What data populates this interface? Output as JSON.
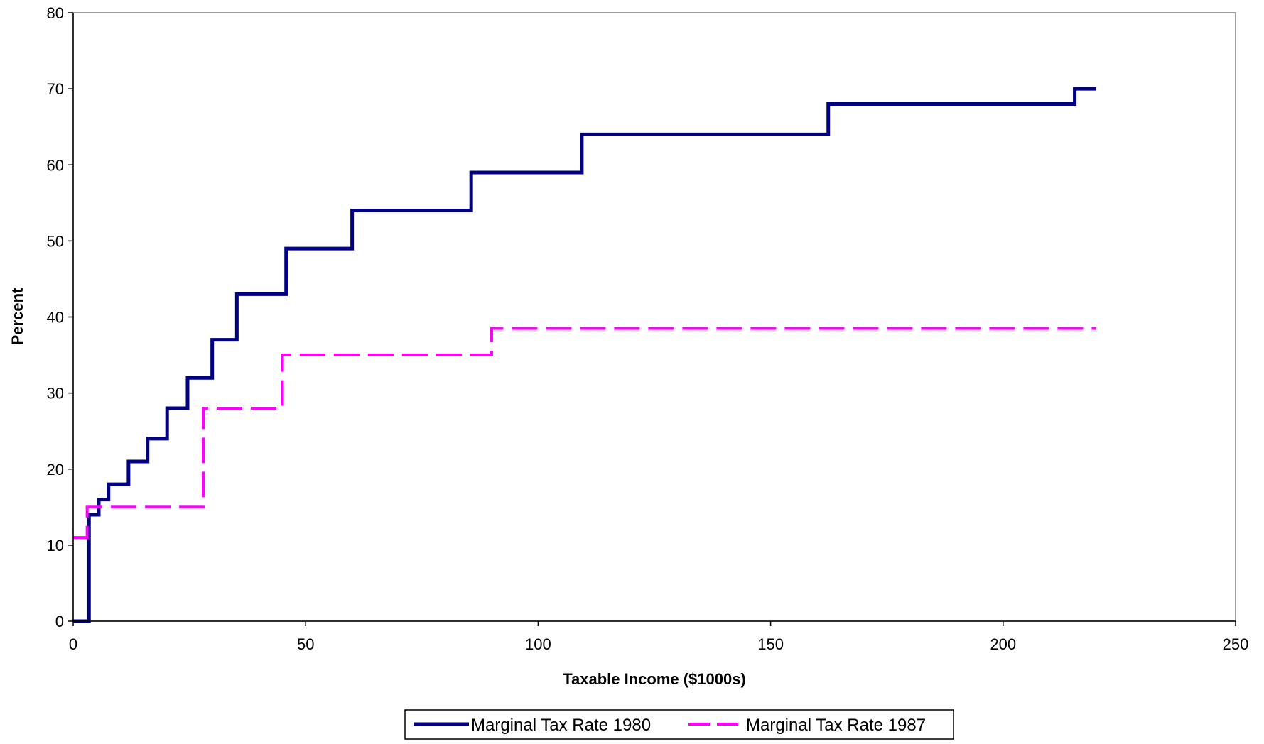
{
  "chart_data": {
    "type": "line",
    "xlabel": "Taxable Income ($1000s)",
    "ylabel": "Percent",
    "xlim": [
      0,
      250
    ],
    "ylim": [
      0,
      80
    ],
    "x_ticks": [
      "0",
      "50",
      "100",
      "150",
      "200",
      "250"
    ],
    "y_ticks": [
      "0",
      "10",
      "20",
      "30",
      "40",
      "50",
      "60",
      "70",
      "80"
    ],
    "grid": false,
    "legend_position": "bottom",
    "step": true,
    "series": [
      {
        "name": "Marginal Tax Rate 1980",
        "color": "#000080",
        "style": "solid",
        "points": [
          [
            0,
            0
          ],
          [
            3.4,
            0
          ],
          [
            3.4,
            14
          ],
          [
            5.5,
            14
          ],
          [
            5.5,
            16
          ],
          [
            7.6,
            16
          ],
          [
            7.6,
            18
          ],
          [
            11.9,
            18
          ],
          [
            11.9,
            21
          ],
          [
            16,
            21
          ],
          [
            16,
            24
          ],
          [
            20.2,
            24
          ],
          [
            20.2,
            28
          ],
          [
            24.6,
            28
          ],
          [
            24.6,
            32
          ],
          [
            29.9,
            32
          ],
          [
            29.9,
            37
          ],
          [
            35.2,
            37
          ],
          [
            35.2,
            43
          ],
          [
            45.8,
            43
          ],
          [
            45.8,
            49
          ],
          [
            60,
            49
          ],
          [
            60,
            54
          ],
          [
            85.6,
            54
          ],
          [
            85.6,
            59
          ],
          [
            109.4,
            59
          ],
          [
            109.4,
            64
          ],
          [
            162.4,
            64
          ],
          [
            162.4,
            68
          ],
          [
            215.4,
            68
          ],
          [
            215.4,
            70
          ],
          [
            220,
            70
          ]
        ]
      },
      {
        "name": "Marginal Tax Rate 1987",
        "color": "#ff00ff",
        "style": "dashed",
        "points": [
          [
            0,
            11
          ],
          [
            3,
            11
          ],
          [
            3,
            15
          ],
          [
            28,
            15
          ],
          [
            28,
            28
          ],
          [
            45,
            28
          ],
          [
            45,
            35
          ],
          [
            90,
            35
          ],
          [
            90,
            38.5
          ],
          [
            220,
            38.5
          ]
        ]
      }
    ]
  }
}
